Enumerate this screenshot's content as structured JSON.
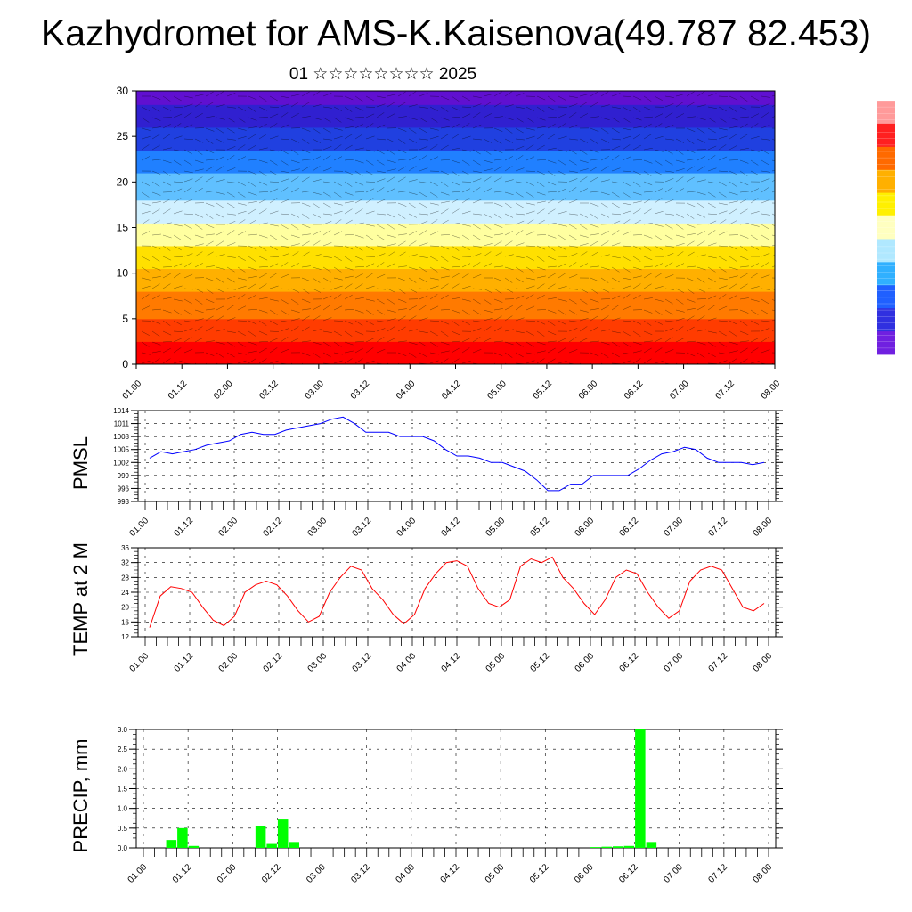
{
  "title": "Kazhydromet for AMS-K.Kaisenova(49.787 82.453)",
  "subtitle": "01 ☆☆☆☆☆☆☆☆ 2025",
  "x_ticks": [
    "01.00",
    "01.12",
    "02.00",
    "02.12",
    "03.00",
    "03.12",
    "04.00",
    "04.12",
    "05.00",
    "05.12",
    "06.00",
    "06.12",
    "07.00",
    "07.12",
    "08.00"
  ],
  "colors": {
    "pmsl": "#0000ff",
    "temp": "#ff0000",
    "precip": "#00ff00",
    "grid": "#000000"
  },
  "chart_data": [
    {
      "type": "heatmap",
      "name": "cross-section",
      "ylim": [
        0,
        30
      ],
      "y_ticks": [
        "0",
        "5",
        "10",
        "15",
        "20",
        "25",
        "30"
      ],
      "colormap": [
        "#ff0000",
        "#ff3c00",
        "#ff7a00",
        "#ffb000",
        "#ffe000",
        "#ffffa0",
        "#d0f0ff",
        "#60c0ff",
        "#2080ff",
        "#2040e0",
        "#3020d0",
        "#6010d0"
      ],
      "colorbar_colors": [
        "#ff9a9a",
        "#ff2020",
        "#ff6a00",
        "#ffb000",
        "#fff000",
        "#ffffc0",
        "#b0e8ff",
        "#30b0ff",
        "#2060ff",
        "#3030e0",
        "#7020e0"
      ],
      "overlay": "wind vectors"
    },
    {
      "type": "line",
      "name": "pmsl",
      "ylabel": "PMSL",
      "ylim": [
        993,
        1014
      ],
      "y_ticks": [
        "993",
        "996",
        "999",
        "1002",
        "1005",
        "1008",
        "1011",
        "1014"
      ],
      "values": [
        1003,
        1004.5,
        1004,
        1004.5,
        1005,
        1006,
        1006.5,
        1007,
        1008.5,
        1009,
        1008.5,
        1008.5,
        1009.5,
        1010,
        1010.5,
        1011,
        1012,
        1012.5,
        1011,
        1009,
        1009,
        1009,
        1008,
        1008,
        1008,
        1007,
        1005,
        1003.5,
        1003.5,
        1003,
        1002,
        1002,
        1001,
        1000,
        998,
        995.5,
        995.5,
        997,
        997,
        999,
        999,
        999,
        999,
        1000.5,
        1002.5,
        1004,
        1004.5,
        1005.5,
        1005,
        1003,
        1002,
        1002,
        1002,
        1001.5,
        1002
      ]
    },
    {
      "type": "line",
      "name": "temp",
      "ylabel": "TEMP at 2 M",
      "ylim": [
        12,
        36
      ],
      "y_ticks": [
        "12",
        "16",
        "20",
        "24",
        "28",
        "32",
        "36"
      ],
      "values": [
        14.5,
        23,
        25.5,
        25,
        24,
        20,
        16.5,
        15,
        17.5,
        24,
        26,
        27,
        26,
        23,
        19,
        16,
        17.5,
        24,
        28,
        31,
        30,
        25,
        22,
        18,
        15.5,
        18,
        25,
        29,
        32,
        32.5,
        31,
        25,
        21,
        20,
        22,
        31,
        33,
        32,
        33.5,
        28,
        25,
        21,
        18,
        22,
        28,
        30,
        29,
        24,
        20,
        17,
        19,
        27,
        30,
        31,
        30,
        25,
        20,
        19,
        21
      ]
    },
    {
      "type": "bar",
      "name": "precip",
      "ylabel": "PRECIP, mm",
      "ylim": [
        0,
        3.0
      ],
      "y_ticks": [
        "0.0",
        "0.5",
        "1.0",
        "1.5",
        "2.0",
        "2.5",
        "3.0"
      ],
      "values": [
        0,
        0,
        0.2,
        0.5,
        0.05,
        0,
        0,
        0,
        0,
        0,
        0.55,
        0.1,
        0.72,
        0.15,
        0,
        0,
        0,
        0,
        0,
        0,
        0,
        0,
        0,
        0,
        0,
        0,
        0,
        0,
        0,
        0,
        0,
        0,
        0,
        0,
        0,
        0,
        0,
        0,
        0,
        0,
        0.02,
        0.03,
        0.04,
        0.05,
        3.0,
        0.15,
        0,
        0,
        0,
        0,
        0,
        0,
        0,
        0,
        0,
        0,
        0,
        0
      ]
    }
  ]
}
